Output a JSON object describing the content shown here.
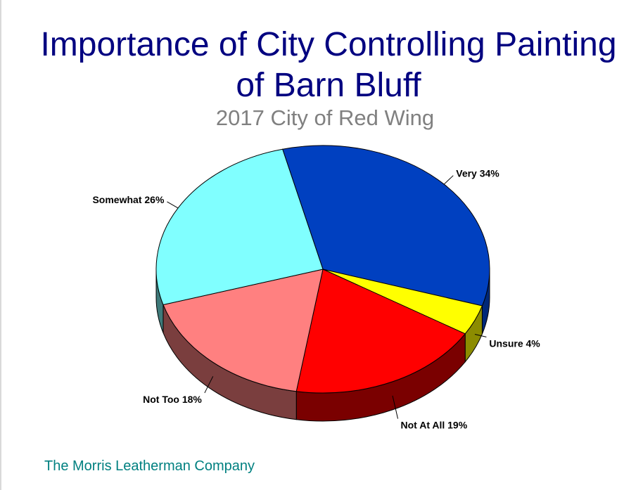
{
  "chart_data": {
    "type": "pie",
    "title_line1": "Importance of City Controlling Painting",
    "title_line2": "of Barn Bluff",
    "subtitle": "2017 City of Red Wing",
    "slices": [
      {
        "label": "Very",
        "value": 34,
        "display": "34%",
        "color": "#0040C0",
        "side": "#002878"
      },
      {
        "label": "Unsure",
        "value": 4,
        "display": "4%",
        "color": "#FFFF00",
        "side": "#8C8C00"
      },
      {
        "label": "Not At All",
        "value": 19,
        "display": "19%",
        "color": "#FF0000",
        "side": "#7A0000"
      },
      {
        "label": "Not Too",
        "value": 18,
        "display": "18%",
        "color": "#FF8080",
        "side": "#7A3E3E"
      },
      {
        "label": "Somewhat",
        "value": 26,
        "display": "26%",
        "color": "#80FFFF",
        "side": "#3E7A7A"
      }
    ],
    "legend": "none"
  },
  "footer": "The Morris Leatherman Company"
}
